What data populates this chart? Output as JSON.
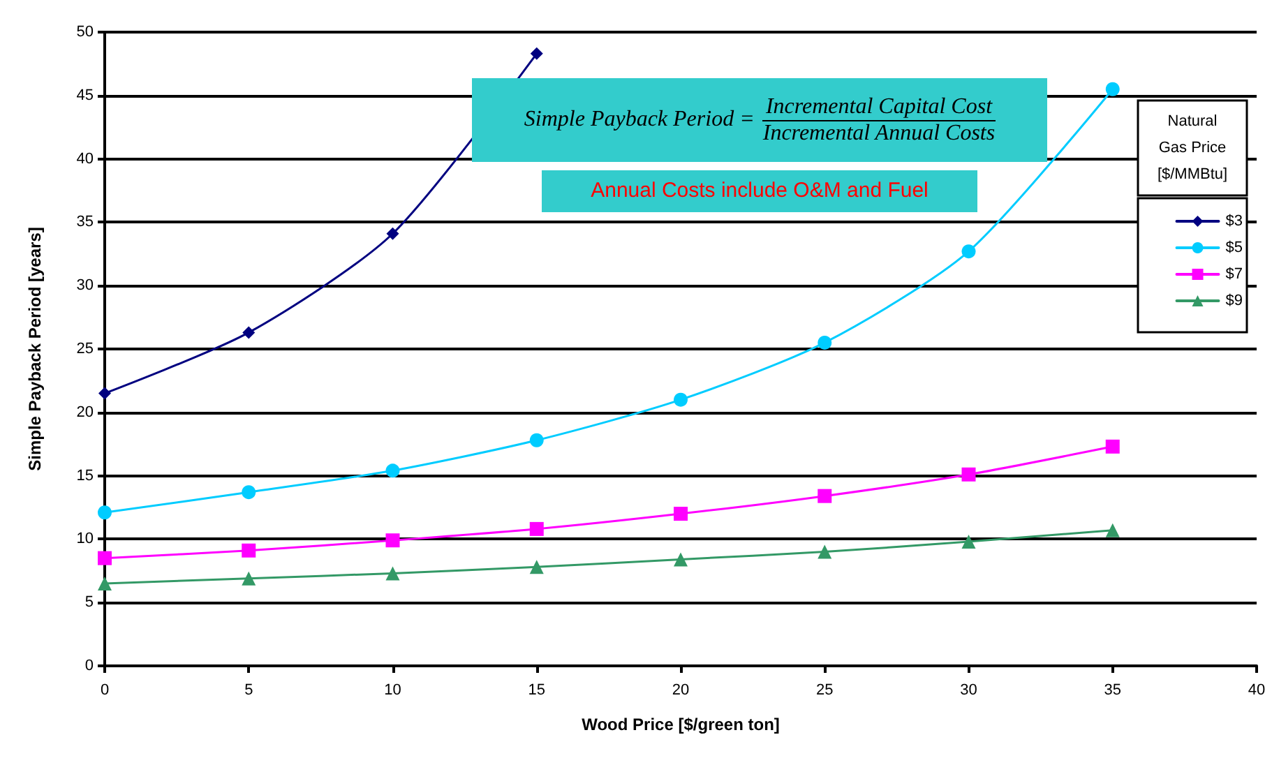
{
  "chart_data": {
    "type": "line",
    "xlabel": "Wood Price [$/green ton]",
    "ylabel": "Simple Payback Period [years]",
    "legend_title": "Natural Gas Price [$/MMBtu]",
    "x": [
      0,
      5,
      10,
      15,
      20,
      25,
      30,
      35
    ],
    "series": [
      {
        "name": "$3",
        "color": "#000080",
        "marker": "diamond",
        "values": [
          21.5,
          26.3,
          34.1,
          48.3,
          null,
          null,
          null,
          null
        ]
      },
      {
        "name": "$5",
        "color": "#00ccff",
        "marker": "circle",
        "values": [
          12.1,
          13.7,
          15.4,
          17.8,
          21.0,
          25.5,
          32.7,
          45.5
        ]
      },
      {
        "name": "$7",
        "color": "#ff00ff",
        "marker": "square",
        "values": [
          8.5,
          9.1,
          9.9,
          10.8,
          12.0,
          13.4,
          15.1,
          17.3
        ]
      },
      {
        "name": "$9",
        "color": "#339966",
        "marker": "triangle",
        "values": [
          6.5,
          6.9,
          7.3,
          7.8,
          8.4,
          9.0,
          9.8,
          10.7
        ]
      }
    ],
    "annotations": [
      "Simple Payback Period =",
      "Incremental Capital Cost",
      "Incremental Annual Costs",
      "Annual Costs include O&M and Fuel"
    ],
    "xlim": [
      0,
      40
    ],
    "xticks": [
      0,
      5,
      10,
      15,
      20,
      25,
      30,
      35,
      40
    ],
    "ylim": [
      0,
      50
    ],
    "yticks": [
      0,
      5,
      10,
      15,
      20,
      25,
      30,
      35,
      40,
      45,
      50
    ],
    "grid": "y",
    "legend": "right"
  }
}
